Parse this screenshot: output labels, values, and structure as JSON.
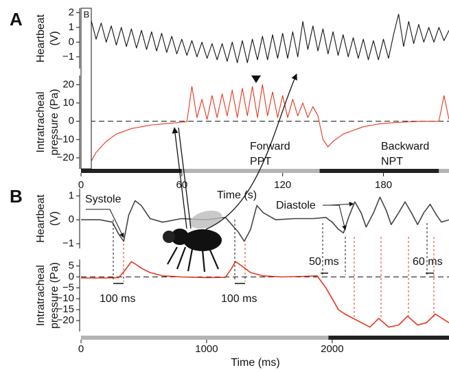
{
  "chart_data": [
    {
      "type": "line",
      "panel": "A",
      "xlabel": "Time (s)",
      "xlim": [
        0,
        219
      ],
      "xticks": [
        0,
        60,
        120,
        180
      ],
      "inset_label": "B",
      "stimulus": [
        {
          "start": 0,
          "end": 60,
          "color": "#222222"
        },
        {
          "start": 60,
          "end": 142,
          "color": "#b4b4b4"
        },
        {
          "start": 142,
          "end": 213,
          "color": "#222222"
        },
        {
          "start": 213,
          "end": 219,
          "color": "#b4b4b4"
        }
      ],
      "annotations": [
        "Forward",
        "PPT",
        "Backward",
        "NPT"
      ],
      "subplots": [
        {
          "ylabel": [
            "Heartbeat",
            "(V)"
          ],
          "ylim": [
            -1.8,
            2.3
          ],
          "yticks": [
            {
              "value": -1,
              "label": "−1"
            },
            0,
            1,
            2
          ],
          "color": "#111111",
          "x": [
            0,
            3,
            6,
            9,
            12,
            15,
            18,
            21,
            24,
            27,
            30,
            33,
            36,
            39,
            42,
            45,
            48,
            51,
            54,
            57,
            60,
            63,
            66,
            69,
            72,
            75,
            78,
            81,
            84,
            87,
            90,
            93,
            96,
            99,
            102,
            105,
            108,
            111,
            114,
            117,
            120,
            123,
            126,
            129,
            132,
            135,
            138,
            141,
            144,
            147,
            150,
            153,
            156,
            159,
            162,
            165,
            168,
            171,
            174,
            177,
            180,
            183,
            186,
            189,
            192,
            195,
            198,
            201,
            204,
            207,
            210,
            213,
            216,
            219
          ],
          "values": [
            null,
            null,
            1.5,
            0.2,
            1.3,
            0.0,
            1.1,
            -0.2,
            1.0,
            -0.3,
            0.9,
            -0.4,
            0.8,
            -0.5,
            0.7,
            -0.6,
            0.6,
            -0.7,
            0.4,
            -0.8,
            0.2,
            -0.9,
            0.1,
            -1.0,
            0.0,
            -1.1,
            -0.1,
            -1.2,
            -0.1,
            -1.3,
            0.0,
            -1.4,
            0.1,
            -1.4,
            0.2,
            -1.2,
            0.4,
            -1.2,
            0.5,
            -1.1,
            0.6,
            -1.1,
            0.7,
            -1.0,
            1.4,
            -0.5,
            1.1,
            -0.6,
            0.9,
            -0.8,
            0.7,
            -0.9,
            0.5,
            -1.0,
            0.3,
            -1.1,
            0.2,
            -1.2,
            0.1,
            -1.2,
            0.2,
            -1.1,
            0.5,
            1.9,
            -0.3,
            1.4,
            -0.1,
            1.2,
            0.0,
            1.0,
            0.0,
            1.0,
            0.1,
            0.8
          ]
        },
        {
          "ylabel": [
            "Intratracheal",
            "pressure (Pa)"
          ],
          "ylim": [
            -26,
            25
          ],
          "yticks": [
            {
              "value": -20,
              "label": "−20"
            },
            {
              "value": -10,
              "label": "−10"
            },
            0,
            10,
            20
          ],
          "color": "#e8341c",
          "x": [
            0,
            3,
            6,
            9,
            12,
            15,
            18,
            21,
            24,
            27,
            30,
            33,
            36,
            39,
            42,
            45,
            48,
            51,
            54,
            57,
            60,
            63,
            66,
            69,
            72,
            75,
            78,
            81,
            84,
            87,
            90,
            93,
            96,
            99,
            102,
            105,
            108,
            111,
            114,
            117,
            120,
            123,
            126,
            129,
            132,
            135,
            138,
            141,
            144,
            147,
            150,
            153,
            156,
            159,
            162,
            165,
            168,
            171,
            174,
            177,
            180,
            183,
            186,
            189,
            192,
            195,
            198,
            201,
            204,
            207,
            210,
            213,
            216,
            219
          ],
          "values": [
            8,
            -3,
            -22,
            -17,
            -14,
            -11,
            -9,
            -7,
            -6,
            -5,
            -4,
            -3.5,
            -3,
            -2.5,
            -2,
            -1.8,
            -1.5,
            -1.2,
            -1,
            -0.8,
            -0.5,
            -0.3,
            19,
            2,
            12,
            1,
            14,
            2,
            15,
            3,
            17,
            2,
            18,
            3,
            19,
            2,
            20,
            3,
            16,
            2,
            14,
            2,
            12,
            3,
            10,
            2,
            8,
            3,
            -10,
            -14,
            -11,
            -9,
            -7,
            -6,
            -5,
            -4,
            -3,
            -2.5,
            -2,
            -1.5,
            -1.2,
            -1,
            -0.8,
            -0.6,
            -0.5,
            -0.3,
            -0.2,
            -0.1,
            0,
            0,
            0,
            0,
            14,
            1
          ]
        }
      ]
    },
    {
      "type": "line",
      "panel": "B",
      "xlabel": "Time (ms)",
      "xlim": [
        0,
        2930
      ],
      "xticks": [
        0,
        1000,
        2000
      ],
      "stimulus": [
        {
          "start": 0,
          "end": 1970,
          "color": "#b4b4b4"
        },
        {
          "start": 1970,
          "end": 2930,
          "color": "#222222"
        }
      ],
      "annotations": [
        "Systole",
        "Diastole",
        "100 ms",
        "100 ms",
        "50 ms",
        "60 ms"
      ],
      "subplots": [
        {
          "ylabel": [
            "Heartbeat",
            "(V)"
          ],
          "ylim": [
            -1.2,
            1.3
          ],
          "yticks": [
            {
              "value": -1,
              "label": "−1"
            },
            0,
            1
          ],
          "color": "#444444",
          "x": [
            0,
            150,
            250,
            300,
            340,
            380,
            430,
            480,
            550,
            650,
            800,
            1000,
            1150,
            1200,
            1250,
            1300,
            1350,
            1400,
            1450,
            1550,
            1700,
            1850,
            1950,
            2000,
            2050,
            2090,
            2130,
            2180,
            2230,
            2270,
            2330,
            2380,
            2430,
            2470,
            2530,
            2580,
            2630,
            2680,
            2730,
            2780,
            2830,
            2870,
            2930
          ],
          "values": [
            0,
            0,
            -0.1,
            -0.6,
            -0.9,
            0.2,
            0.8,
            0.6,
            0.05,
            -0.1,
            0.05,
            0,
            0.1,
            -0.2,
            -0.5,
            -0.9,
            -0.4,
            0.6,
            0.3,
            0,
            0.05,
            0.05,
            0.1,
            -0.1,
            -0.4,
            -0.55,
            0.1,
            0.75,
            0.3,
            -0.3,
            0.3,
            0.95,
            0.4,
            -0.2,
            0.3,
            0.75,
            0.3,
            -0.2,
            0.3,
            0.65,
            0.2,
            -0.1,
            0
          ]
        },
        {
          "ylabel": [
            "Intratracheal",
            "pressure (Pa)"
          ],
          "ylim": [
            -25,
            8
          ],
          "yticks": [
            {
              "value": -20,
              "label": "−20"
            },
            {
              "value": -15,
              "label": "−15"
            },
            {
              "value": -10,
              "label": "−10"
            },
            {
              "value": -5,
              "label": "−5"
            },
            0,
            5
          ],
          "color": "#e8341c",
          "x": [
            0,
            200,
            300,
            350,
            400,
            430,
            480,
            550,
            650,
            800,
            1000,
            1150,
            1200,
            1230,
            1280,
            1350,
            1450,
            1600,
            1800,
            1880,
            1950,
            2000,
            2050,
            2100,
            2200,
            2300,
            2370,
            2450,
            2530,
            2600,
            2680,
            2750,
            2820,
            2930
          ],
          "values": [
            -0.5,
            -0.5,
            -0.3,
            3,
            7,
            6,
            4,
            2,
            0.5,
            0,
            -0.3,
            -0.2,
            4,
            7,
            5,
            2,
            0.5,
            0,
            0.3,
            0.5,
            -5,
            -10,
            -15,
            -17,
            -20,
            -23,
            -19,
            -23,
            -22,
            -18,
            -22,
            -21,
            -17,
            -21
          ]
        }
      ]
    }
  ]
}
